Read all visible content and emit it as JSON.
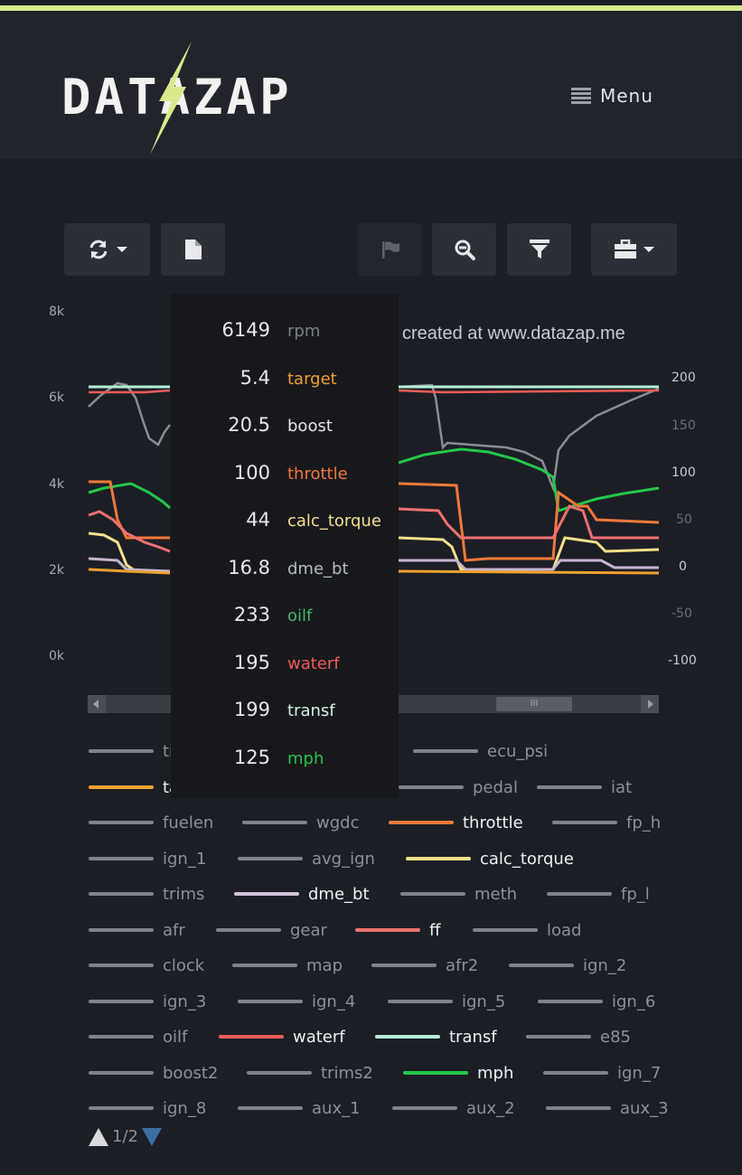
{
  "header": {
    "logo_text": "DATAZAP",
    "menu_label": "Menu"
  },
  "toolbar": {
    "buttons": [
      {
        "name": "refresh",
        "icon": "refresh-icon",
        "has_caret": true
      },
      {
        "name": "file",
        "icon": "file-icon",
        "has_caret": false
      },
      {
        "name": "flag",
        "icon": "flag-icon",
        "has_caret": false,
        "disabled": true
      },
      {
        "name": "zoom-out",
        "icon": "zoom-out-icon",
        "has_caret": false
      },
      {
        "name": "filter",
        "icon": "filter-icon",
        "has_caret": false
      },
      {
        "name": "toolbox",
        "icon": "briefcase-icon",
        "has_caret": true
      }
    ]
  },
  "chart_data": {
    "type": "line",
    "title": "created at www.datazap.me",
    "left_axis_ticks": [
      "8k",
      "6k",
      "4k",
      "2k",
      "0k"
    ],
    "right_axis_ticks": [
      "200",
      "150",
      "100",
      "50",
      "0",
      "-50",
      "-100"
    ],
    "ylim_left": [
      0,
      8000
    ],
    "ylim_right": [
      -100,
      200
    ],
    "series_colors": {
      "rpm": "#8a8d94",
      "target": "#f0a030",
      "throttle": "#f07838",
      "calc_torque": "#f6e08a",
      "dme_bt": "#c6b4d0",
      "waterf": "#f05c58",
      "transf": "#b4f0d8",
      "mph": "#22c84a",
      "ff": "#f07070"
    }
  },
  "tooltip": {
    "rows": [
      {
        "value": "6149",
        "name": "rpm",
        "color": "#7c7f87"
      },
      {
        "value": "5.4",
        "name": "target",
        "color": "#f0a030"
      },
      {
        "value": "20.5",
        "name": "boost",
        "color": "#e4e5e8"
      },
      {
        "value": "100",
        "name": "throttle",
        "color": "#f07838"
      },
      {
        "value": "44",
        "name": "calc_torque",
        "color": "#f6e08a"
      },
      {
        "value": "16.8",
        "name": "dme_bt",
        "color": "#b8bbc2"
      },
      {
        "value": "233",
        "name": "oilf",
        "color": "#3fb866"
      },
      {
        "value": "195",
        "name": "waterf",
        "color": "#f05c58"
      },
      {
        "value": "199",
        "name": "transf",
        "color": "#d4f2e4"
      },
      {
        "value": "125",
        "name": "mph",
        "color": "#28c24c"
      }
    ]
  },
  "legend": {
    "items": [
      {
        "label": "ti",
        "color": "#7f828a",
        "active": false
      },
      {
        "label": "ecu_psi",
        "color": "#7f828a",
        "active": false
      },
      {
        "label": "ta",
        "color": "#f0a030",
        "active": true
      },
      {
        "label": "pedal",
        "color": "#7f828a",
        "active": false
      },
      {
        "label": "iat",
        "color": "#7f828a",
        "active": false
      },
      {
        "label": "fuelen",
        "color": "#7f828a",
        "active": false
      },
      {
        "label": "wgdc",
        "color": "#7f828a",
        "active": false
      },
      {
        "label": "throttle",
        "color": "#f07838",
        "active": true
      },
      {
        "label": "fp_h",
        "color": "#7f828a",
        "active": false
      },
      {
        "label": "ign_1",
        "color": "#7f828a",
        "active": false
      },
      {
        "label": "avg_ign",
        "color": "#7f828a",
        "active": false
      },
      {
        "label": "calc_torque",
        "color": "#f6e08a",
        "active": true
      },
      {
        "label": "trims",
        "color": "#7f828a",
        "active": false
      },
      {
        "label": "dme_bt",
        "color": "#d2c2da",
        "active": true
      },
      {
        "label": "meth",
        "color": "#7f828a",
        "active": false
      },
      {
        "label": "fp_l",
        "color": "#7f828a",
        "active": false
      },
      {
        "label": "afr",
        "color": "#7f828a",
        "active": false
      },
      {
        "label": "gear",
        "color": "#7f828a",
        "active": false
      },
      {
        "label": "ff",
        "color": "#f07070",
        "active": true
      },
      {
        "label": "load",
        "color": "#7f828a",
        "active": false
      },
      {
        "label": "clock",
        "color": "#7f828a",
        "active": false
      },
      {
        "label": "map",
        "color": "#7f828a",
        "active": false
      },
      {
        "label": "afr2",
        "color": "#7f828a",
        "active": false
      },
      {
        "label": "ign_2",
        "color": "#7f828a",
        "active": false
      },
      {
        "label": "ign_3",
        "color": "#7f828a",
        "active": false
      },
      {
        "label": "ign_4",
        "color": "#7f828a",
        "active": false
      },
      {
        "label": "ign_5",
        "color": "#7f828a",
        "active": false
      },
      {
        "label": "ign_6",
        "color": "#7f828a",
        "active": false
      },
      {
        "label": "oilf",
        "color": "#7f828a",
        "active": false
      },
      {
        "label": "waterf",
        "color": "#f05c58",
        "active": true
      },
      {
        "label": "transf",
        "color": "#b4f0d8",
        "active": true
      },
      {
        "label": "e85",
        "color": "#7f828a",
        "active": false
      },
      {
        "label": "boost2",
        "color": "#7f828a",
        "active": false
      },
      {
        "label": "trims2",
        "color": "#7f828a",
        "active": false
      },
      {
        "label": "mph",
        "color": "#22c84a",
        "active": true
      },
      {
        "label": "ign_7",
        "color": "#7f828a",
        "active": false
      },
      {
        "label": "ign_8",
        "color": "#7f828a",
        "active": false
      },
      {
        "label": "aux_1",
        "color": "#7f828a",
        "active": false
      },
      {
        "label": "aux_2",
        "color": "#7f828a",
        "active": false
      },
      {
        "label": "aux_3",
        "color": "#7f828a",
        "active": false
      }
    ]
  },
  "pager": {
    "text": "1/2"
  }
}
